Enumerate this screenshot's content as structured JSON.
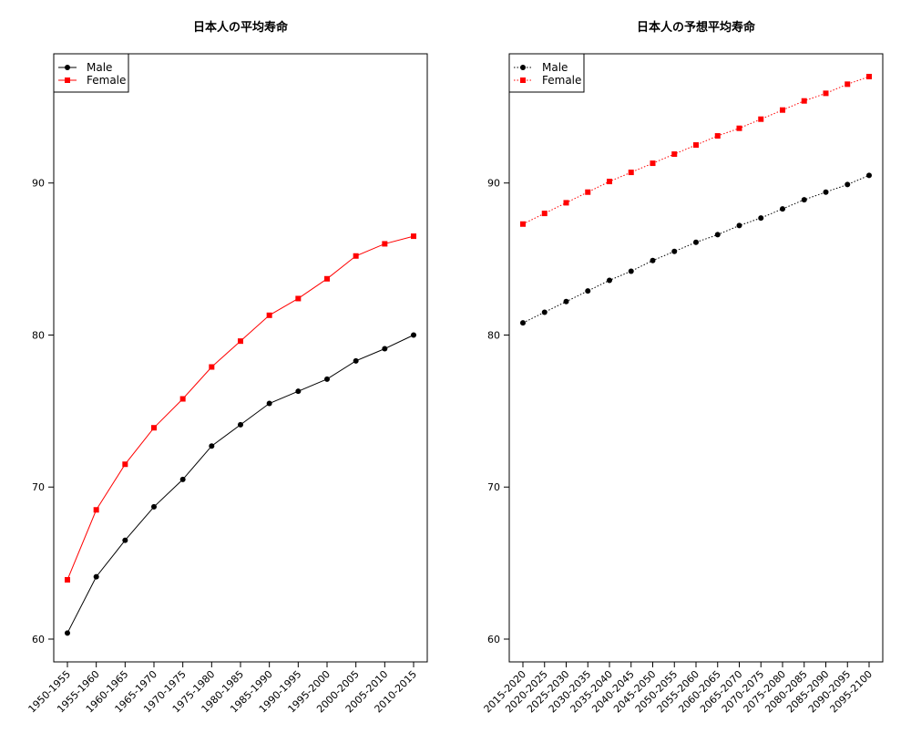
{
  "chart_data": [
    {
      "type": "line",
      "title": "日本人の平均寿命",
      "xlabel": "",
      "ylabel": "",
      "categories": [
        "1950-1955",
        "1955-1960",
        "1960-1965",
        "1965-1970",
        "1970-1975",
        "1975-1980",
        "1980-1985",
        "1985-1990",
        "1990-1995",
        "1995-2000",
        "2000-2005",
        "2005-2010",
        "2010-2015"
      ],
      "series": [
        {
          "name": "Male",
          "color": "#000000",
          "marker": "circle",
          "line": "solid",
          "values": [
            60.4,
            64.1,
            66.5,
            68.7,
            70.5,
            72.7,
            74.1,
            75.5,
            76.3,
            77.1,
            78.3,
            79.1,
            80.0
          ]
        },
        {
          "name": "Female",
          "color": "#ff0000",
          "marker": "square",
          "line": "solid",
          "values": [
            63.9,
            68.5,
            71.5,
            73.9,
            75.8,
            77.9,
            79.6,
            81.3,
            82.4,
            83.7,
            85.2,
            86.0,
            86.5
          ]
        }
      ],
      "yticks": [
        60,
        70,
        80,
        90
      ],
      "ylim": [
        58.5,
        98.5
      ],
      "grid": false,
      "legend": "top-left"
    },
    {
      "type": "line",
      "title": "日本人の予想平均寿命",
      "xlabel": "",
      "ylabel": "",
      "categories": [
        "2015-2020",
        "2020-2025",
        "2025-2030",
        "2030-2035",
        "2035-2040",
        "2040-2045",
        "2045-2050",
        "2050-2055",
        "2055-2060",
        "2060-2065",
        "2065-2070",
        "2070-2075",
        "2075-2080",
        "2080-2085",
        "2085-2090",
        "2090-2095",
        "2095-2100"
      ],
      "series": [
        {
          "name": "Male",
          "color": "#000000",
          "marker": "circle",
          "line": "dotted",
          "values": [
            80.8,
            81.5,
            82.2,
            82.9,
            83.6,
            84.2,
            84.9,
            85.5,
            86.1,
            86.6,
            87.2,
            87.7,
            88.3,
            88.9,
            89.4,
            89.9,
            90.5
          ]
        },
        {
          "name": "Female",
          "color": "#ff0000",
          "marker": "square",
          "line": "dotted",
          "values": [
            87.3,
            88.0,
            88.7,
            89.4,
            90.1,
            90.7,
            91.3,
            91.9,
            92.5,
            93.1,
            93.6,
            94.2,
            94.8,
            95.4,
            95.9,
            96.5,
            97.0
          ]
        }
      ],
      "yticks": [
        60,
        70,
        80,
        90
      ],
      "ylim": [
        58.5,
        98.5
      ],
      "grid": false,
      "legend": "top-left"
    }
  ]
}
